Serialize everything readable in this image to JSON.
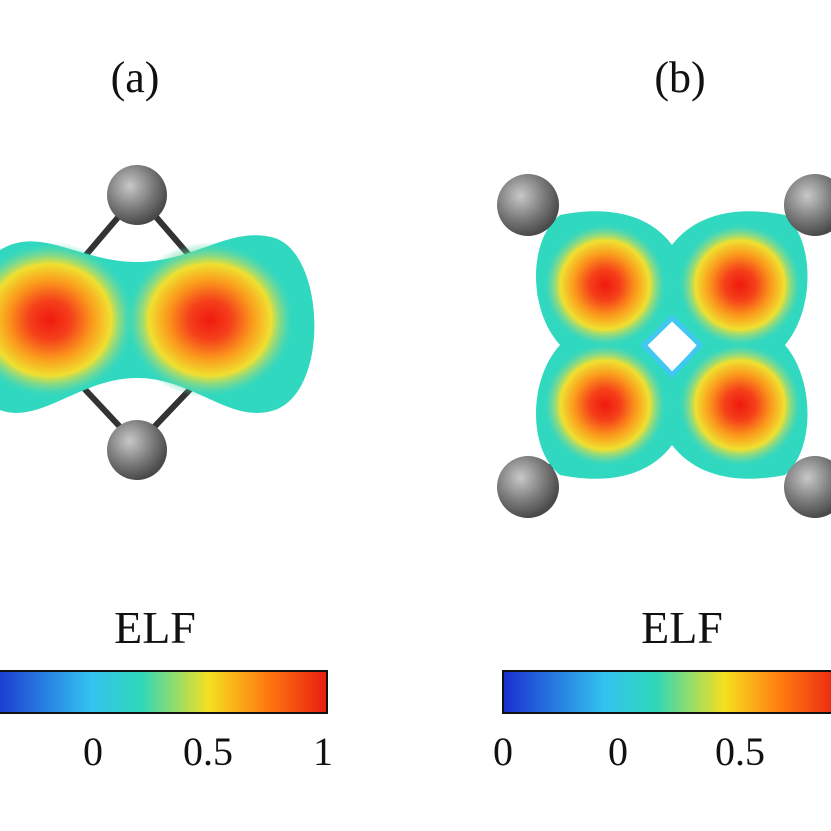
{
  "panels": [
    {
      "label": "(a)",
      "colorbar": {
        "title": "ELF",
        "ticks": [
          "0",
          "0.5",
          "1"
        ]
      }
    },
    {
      "label": "(b)",
      "colorbar": {
        "title": "ELF",
        "ticks": [
          "0",
          "0",
          "0.5"
        ]
      }
    }
  ]
}
